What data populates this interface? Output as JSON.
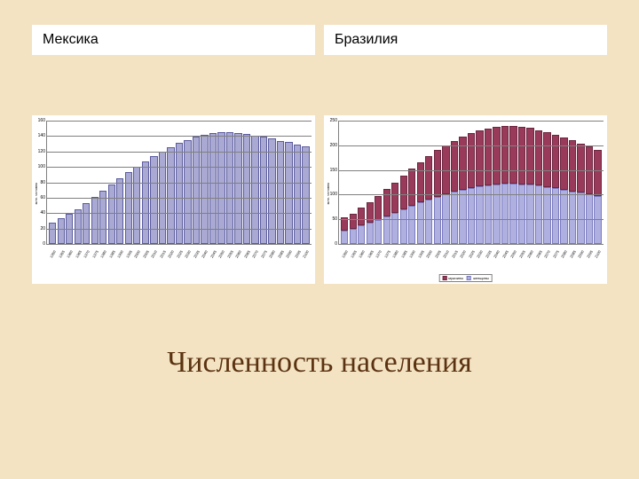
{
  "slide": {
    "background_color": "#f3e3c2",
    "title": "Численность населения",
    "title_color": "#5c3312",
    "title_fontsize": 34
  },
  "labels": {
    "left": "Мексика",
    "right": "Бразилия",
    "label_bg": "#ffffff",
    "label_fontsize": 16
  },
  "chart_common": {
    "categories": [
      "1950",
      "1955",
      "1960",
      "1965",
      "1970",
      "1975",
      "1980",
      "1985",
      "1990",
      "1995",
      "2000",
      "2005",
      "2010",
      "2015",
      "2020",
      "2025",
      "2030",
      "2035",
      "2040",
      "2045",
      "2050",
      "2055",
      "2060",
      "2065",
      "2070",
      "2075",
      "2080",
      "2085",
      "2090",
      "2095",
      "2100"
    ],
    "ylabel": "млн. человек",
    "background_color": "#ffffff",
    "grid_color": "#808080",
    "bar_gap": 1.2
  },
  "mexico_chart": {
    "type": "bar",
    "ylim": [
      0,
      160
    ],
    "ytick_step": 20,
    "values": [
      28,
      33,
      39,
      45,
      53,
      61,
      69,
      77,
      85,
      93,
      100,
      107,
      114,
      120,
      126,
      131,
      135,
      139,
      142,
      144,
      145,
      145,
      144,
      143,
      141,
      139,
      137,
      134,
      132,
      129,
      127
    ],
    "bar_color": "#a9a9d4",
    "bar_border": "#5b5b9e"
  },
  "brazil_chart": {
    "type": "stacked-bar",
    "ylim": [
      0,
      250
    ],
    "ytick_step": 50,
    "series": [
      {
        "name": "мужчины",
        "color": "#9a3a5a",
        "border": "#6b2640",
        "values": [
          27,
          31,
          36,
          42,
          48,
          55,
          62,
          69,
          76,
          82,
          88,
          94,
          99,
          103,
          107,
          110,
          113,
          115,
          116,
          117,
          117,
          116,
          115,
          113,
          111,
          109,
          106,
          103,
          100,
          97,
          94
        ]
      },
      {
        "name": "женщины",
        "color": "#b0b0e0",
        "border": "#7a7abf",
        "values": [
          27,
          31,
          37,
          43,
          49,
          56,
          63,
          70,
          77,
          84,
          90,
          96,
          101,
          106,
          110,
          114,
          117,
          119,
          121,
          122,
          122,
          121,
          120,
          118,
          116,
          113,
          110,
          107,
          104,
          101,
          97
        ]
      }
    ],
    "legend": {
      "labels": [
        "мужчины",
        "женщины"
      ]
    }
  }
}
